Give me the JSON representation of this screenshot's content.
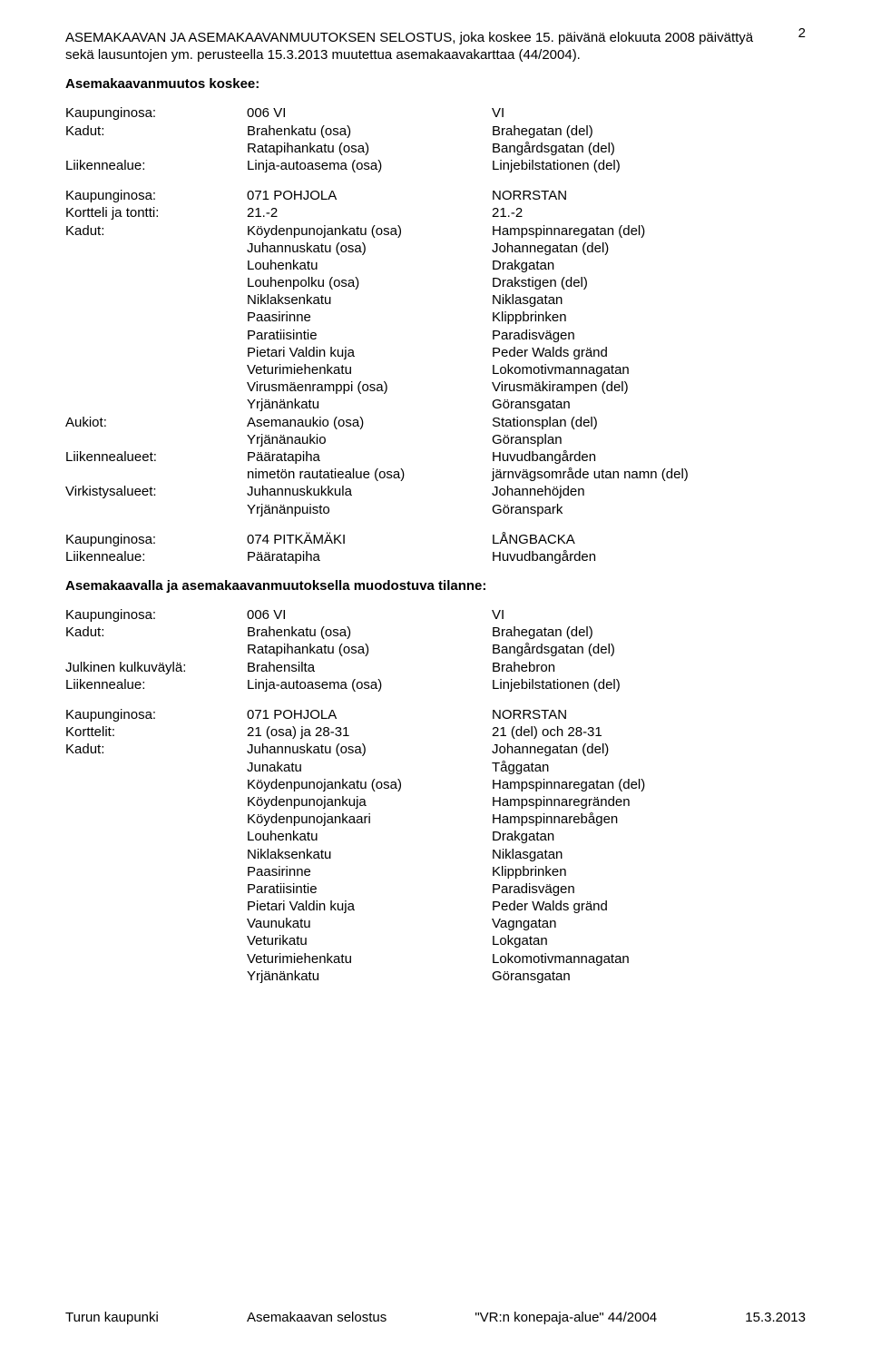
{
  "page_number": "2",
  "intro": "ASEMAKAAVAN JA ASEMAKAAVANMUUTOKSEN SELOSTUS, joka koskee 15. päivänä elokuuta 2008 päivättyä sekä lausuntojen ym. perusteella 15.3.2013 muutettua asemakaavakarttaa (44/2004).",
  "heading_koskee": "Asemakaavanmuutos koskee:",
  "heading_tilanne": "Asemakaavalla ja asemakaavanmuutoksella muodostuva tilanne:",
  "labels": {
    "kaupunginosa": "Kaupunginosa:",
    "kadut": "Kadut:",
    "liikennealue": "Liikennealue:",
    "kortteli_tontti": "Kortteli ja tontti:",
    "korttelit": "Korttelit:",
    "aukiot": "Aukiot:",
    "liikennealueet": "Liikennealueet:",
    "virkistysalueet": "Virkistysalueet:",
    "julkinen_kulkuvayla": "Julkinen kulkuväylä:"
  },
  "k1": {
    "kaup_mid": "006 VI",
    "kaup_r": "VI",
    "kadut1_mid": "Brahenkatu (osa)",
    "kadut1_r": "Brahegatan (del)",
    "kadut2_mid": "Ratapihankatu (osa)",
    "kadut2_r": "Bangårdsgatan (del)",
    "liik_mid": "Linja-autoasema (osa)",
    "liik_r": "Linjebilstationen (del)"
  },
  "k2": {
    "kaup_mid": "071 POHJOLA",
    "kaup_r": "NORRSTAN",
    "kort_mid": "21.-2",
    "kort_r": "21.-2",
    "k1_mid": "Köydenpunojankatu (osa)",
    "k1_r": "Hampspinnaregatan (del)",
    "k2_mid": "Juhannuskatu (osa)",
    "k2_r": "Johannegatan (del)",
    "k3_mid": "Louhenkatu",
    "k3_r": "Drakgatan",
    "k4_mid": "Louhenpolku (osa)",
    "k4_r": "Drakstigen (del)",
    "k5_mid": "Niklaksenkatu",
    "k5_r": "Niklasgatan",
    "k6_mid": "Paasirinne",
    "k6_r": "Klippbrinken",
    "k7_mid": "Paratiisintie",
    "k7_r": "Paradisvägen",
    "k8_mid": "Pietari Valdin kuja",
    "k8_r": "Peder Walds gränd",
    "k9_mid": "Veturimiehenkatu",
    "k9_r": "Lokomotivmannagatan",
    "k10_mid": "Virusmäenramppi (osa)",
    "k10_r": "Virusmäkirampen (del)",
    "k11_mid": "Yrjänänkatu",
    "k11_r": "Göransgatan",
    "a1_mid": "Asemanaukio (osa)",
    "a1_r": "Stationsplan (del)",
    "a2_mid": "Yrjänänaukio",
    "a2_r": "Göransplan",
    "l1_mid": "Pääratapiha",
    "l1_r": "Huvudbangården",
    "l2_mid": "nimetön rautatiealue (osa)",
    "l2_r": "järnvägsområde utan namn (del)",
    "v1_mid": "Juhannuskukkula",
    "v1_r": "Johannehöjden",
    "v2_mid": "Yrjänänpuisto",
    "v2_r": "Göranspark"
  },
  "k3": {
    "kaup_mid": "074 PITKÄMÄKI",
    "kaup_r": "LÅNGBACKA",
    "liik_mid": "Pääratapiha",
    "liik_r": "Huvudbangården"
  },
  "t1": {
    "kaup_mid": "006 VI",
    "kaup_r": "VI",
    "kadut1_mid": "Brahenkatu (osa)",
    "kadut1_r": "Brahegatan (del)",
    "kadut2_mid": "Ratapihankatu (osa)",
    "kadut2_r": "Bangårdsgatan (del)",
    "julk_mid": "Brahensilta",
    "julk_r": "Brahebron",
    "liik_mid": "Linja-autoasema (osa)",
    "liik_r": "Linjebilstationen (del)"
  },
  "t2": {
    "kaup_mid": "071 POHJOLA",
    "kaup_r": "NORRSTAN",
    "kort_mid": "21 (osa) ja 28-31",
    "kort_r": "21 (del) och 28-31",
    "k1_mid": "Juhannuskatu (osa)",
    "k1_r": "Johannegatan (del)",
    "k2_mid": "Junakatu",
    "k2_r": "Tåggatan",
    "k3_mid": "Köydenpunojankatu (osa)",
    "k3_r": "Hampspinnaregatan (del)",
    "k4_mid": "Köydenpunojankuja",
    "k4_r": "Hampspinnaregränden",
    "k5_mid": "Köydenpunojankaari",
    "k5_r": "Hampspinnarebågen",
    "k6_mid": "Louhenkatu",
    "k6_r": "Drakgatan",
    "k7_mid": "Niklaksenkatu",
    "k7_r": "Niklasgatan",
    "k8_mid": "Paasirinne",
    "k8_r": "Klippbrinken",
    "k9_mid": "Paratiisintie",
    "k9_r": "Paradisvägen",
    "k10_mid": "Pietari Valdin kuja",
    "k10_r": "Peder Walds gränd",
    "k11_mid": "Vaunukatu",
    "k11_r": "Vagngatan",
    "k12_mid": "Veturikatu",
    "k12_r": "Lokgatan",
    "k13_mid": "Veturimiehenkatu",
    "k13_r": "Lokomotivmannagatan",
    "k14_mid": "Yrjänänkatu",
    "k14_r": "Göransgatan"
  },
  "footer": {
    "left": "Turun kaupunki",
    "center_a": "Asemakaavan selostus",
    "center_b": "\"VR:n konepaja-alue\" 44/2004",
    "right": "15.3.2013"
  }
}
